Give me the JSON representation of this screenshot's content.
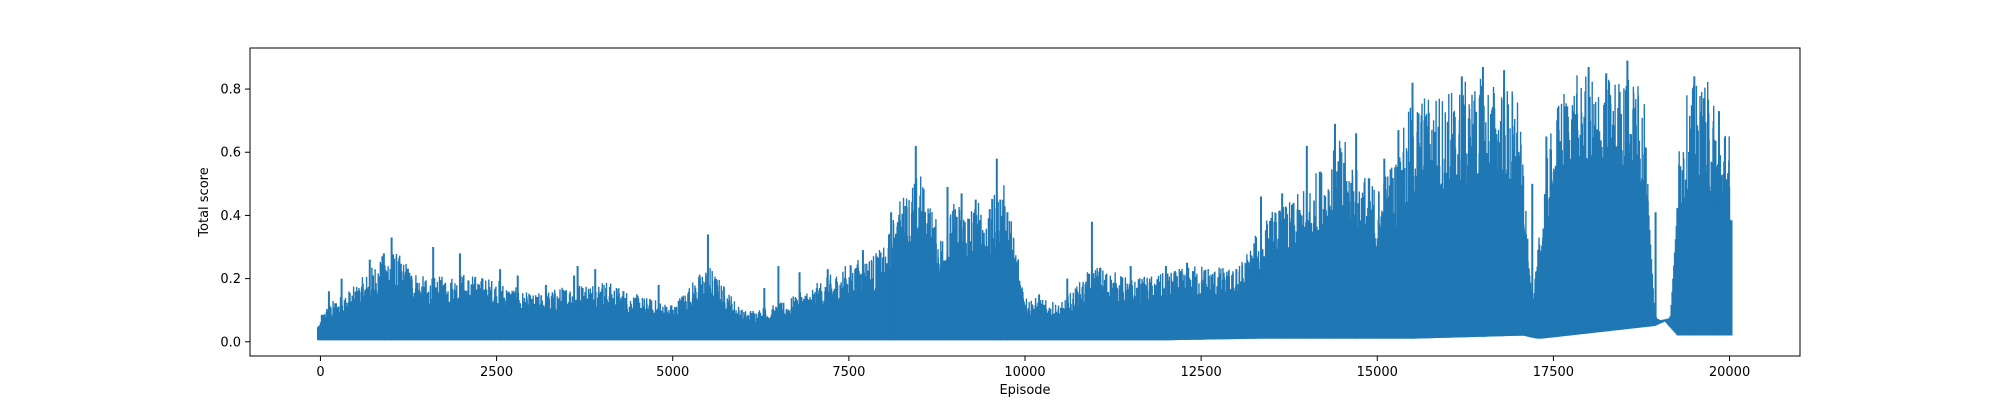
{
  "chart_data": {
    "type": "line",
    "title": "",
    "xlabel": "Episode",
    "ylabel": "Total score",
    "xlim": [
      -1000,
      21000
    ],
    "ylim": [
      -0.045,
      0.93
    ],
    "x_ticks": [
      0,
      2500,
      5000,
      7500,
      10000,
      12500,
      15000,
      17500,
      20000
    ],
    "x_tick_labels": [
      "0",
      "2500",
      "5000",
      "7500",
      "10000",
      "12500",
      "15000",
      "17500",
      "20000"
    ],
    "y_ticks": [
      0.0,
      0.2,
      0.4,
      0.6,
      0.8
    ],
    "y_tick_labels": [
      "0.0",
      "0.2",
      "0.4",
      "0.6",
      "0.8"
    ],
    "grid": false,
    "legend": "none",
    "colors": {
      "series": "#1f77b4",
      "axes": "#000000",
      "background": "#ffffff"
    },
    "series": [
      {
        "x_range": [
          0,
          20000
        ],
        "envelope_x": [
          0,
          100,
          500,
          800,
          1000,
          1500,
          2000,
          2500,
          3000,
          3500,
          4000,
          4500,
          5000,
          5500,
          6000,
          6500,
          7000,
          7500,
          8000,
          8200,
          8500,
          8800,
          9000,
          9300,
          9500,
          9700,
          9900,
          10000,
          10500,
          11000,
          11500,
          12000,
          12500,
          13000,
          13300,
          13500,
          13800,
          14000,
          14300,
          14500,
          14800,
          15000,
          15300,
          15500,
          15800,
          16000,
          16500,
          16800,
          17000,
          17200,
          17400,
          17600,
          17800,
          18000,
          18300,
          18600,
          18800,
          18900,
          19000,
          19100,
          19200,
          19300,
          19500,
          19700,
          19900,
          20000
        ],
        "envelope_y": [
          0.08,
          0.12,
          0.18,
          0.26,
          0.3,
          0.2,
          0.22,
          0.2,
          0.15,
          0.18,
          0.2,
          0.15,
          0.12,
          0.25,
          0.1,
          0.12,
          0.18,
          0.25,
          0.3,
          0.45,
          0.55,
          0.35,
          0.45,
          0.45,
          0.45,
          0.5,
          0.3,
          0.15,
          0.12,
          0.25,
          0.2,
          0.22,
          0.25,
          0.23,
          0.35,
          0.42,
          0.45,
          0.5,
          0.6,
          0.65,
          0.55,
          0.5,
          0.62,
          0.78,
          0.8,
          0.81,
          0.84,
          0.83,
          0.8,
          0.1,
          0.6,
          0.8,
          0.85,
          0.84,
          0.85,
          0.85,
          0.8,
          0.1,
          0.07,
          0.07,
          0.1,
          0.75,
          0.82,
          0.83,
          0.7,
          0.68
        ],
        "baseline_x": [
          0,
          2000,
          4000,
          6000,
          8000,
          10000,
          12000,
          13300,
          15500,
          17100,
          17300,
          18900,
          19100,
          19300,
          20000
        ],
        "baseline_y": [
          0.005,
          0.005,
          0.005,
          0.005,
          0.005,
          0.005,
          0.005,
          0.01,
          0.01,
          0.02,
          0.01,
          0.05,
          0.07,
          0.02,
          0.02
        ],
        "spikes": [
          [
            120,
            0.16
          ],
          [
            300,
            0.2
          ],
          [
            520,
            0.16
          ],
          [
            700,
            0.26
          ],
          [
            900,
            0.28
          ],
          [
            1010,
            0.33
          ],
          [
            1300,
            0.17
          ],
          [
            1600,
            0.3
          ],
          [
            1750,
            0.18
          ],
          [
            1980,
            0.28
          ],
          [
            2300,
            0.2
          ],
          [
            2550,
            0.23
          ],
          [
            2800,
            0.21
          ],
          [
            3200,
            0.18
          ],
          [
            3600,
            0.21
          ],
          [
            3650,
            0.24
          ],
          [
            3900,
            0.23
          ],
          [
            4300,
            0.16
          ],
          [
            4800,
            0.18
          ],
          [
            5500,
            0.34
          ],
          [
            5800,
            0.13
          ],
          [
            6300,
            0.17
          ],
          [
            6500,
            0.24
          ],
          [
            6800,
            0.22
          ],
          [
            7200,
            0.23
          ],
          [
            7700,
            0.29
          ],
          [
            7900,
            0.27
          ],
          [
            8100,
            0.41
          ],
          [
            8150,
            0.33
          ],
          [
            8300,
            0.43
          ],
          [
            8450,
            0.62
          ],
          [
            8700,
            0.36
          ],
          [
            8900,
            0.49
          ],
          [
            9100,
            0.47
          ],
          [
            9300,
            0.45
          ],
          [
            9500,
            0.42
          ],
          [
            9600,
            0.58
          ],
          [
            9650,
            0.45
          ],
          [
            9750,
            0.41
          ],
          [
            10200,
            0.15
          ],
          [
            10600,
            0.2
          ],
          [
            10950,
            0.38
          ],
          [
            11500,
            0.24
          ],
          [
            12000,
            0.24
          ],
          [
            12300,
            0.25
          ],
          [
            13000,
            0.23
          ],
          [
            13350,
            0.46
          ],
          [
            13650,
            0.47
          ],
          [
            14000,
            0.62
          ],
          [
            14400,
            0.69
          ],
          [
            14700,
            0.66
          ],
          [
            15100,
            0.58
          ],
          [
            15300,
            0.67
          ],
          [
            15500,
            0.82
          ],
          [
            16200,
            0.84
          ],
          [
            16500,
            0.87
          ],
          [
            16800,
            0.86
          ],
          [
            17200,
            0.5
          ],
          [
            17400,
            0.65
          ],
          [
            18000,
            0.87
          ],
          [
            18250,
            0.85
          ],
          [
            18550,
            0.89
          ],
          [
            18950,
            0.41
          ],
          [
            19500,
            0.84
          ],
          [
            19850,
            0.73
          ]
        ],
        "gaps": [
          [
            14420,
            0.0
          ],
          [
            15210,
            0.0
          ]
        ]
      }
    ]
  }
}
